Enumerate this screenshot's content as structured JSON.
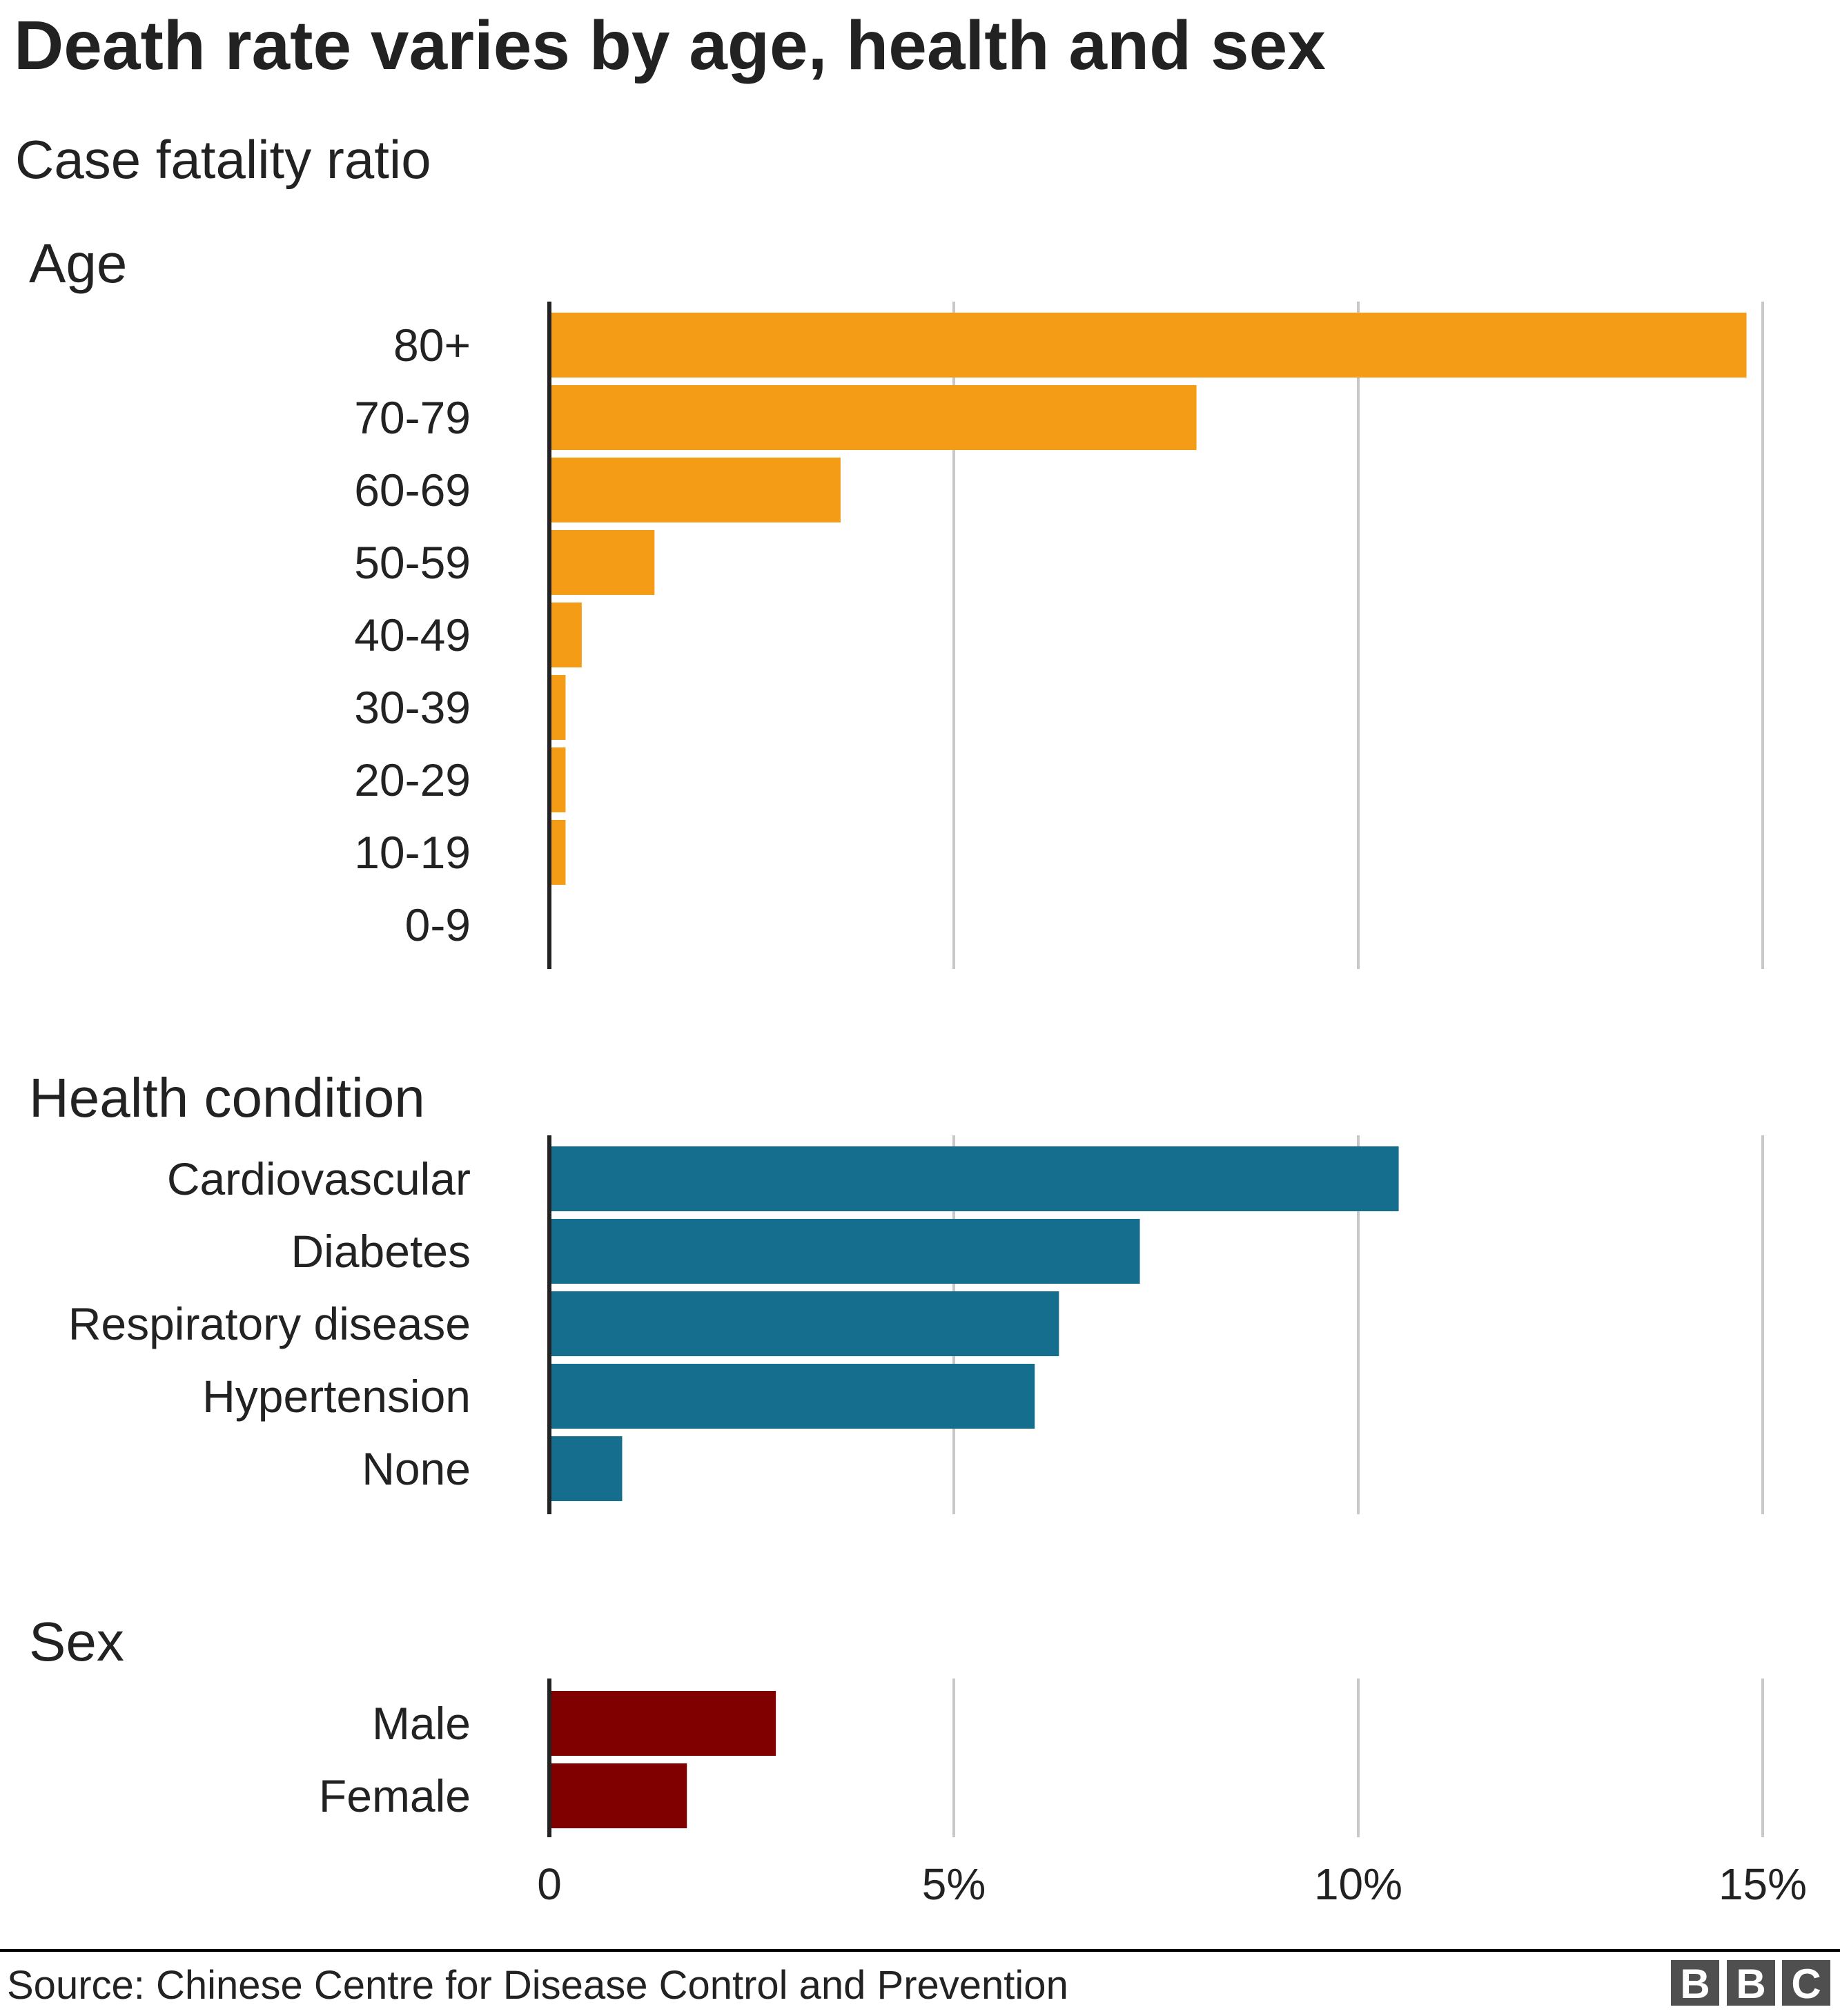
{
  "chart_data": [
    {
      "type": "bar",
      "orientation": "horizontal",
      "title": "Death rate varies by age, health and sex",
      "subtitle": "Case fatality ratio",
      "group": "Age",
      "categories": [
        "80+",
        "70-79",
        "60-69",
        "50-59",
        "40-49",
        "30-39",
        "20-29",
        "10-19",
        "0-9"
      ],
      "values": [
        14.8,
        8.0,
        3.6,
        1.3,
        0.4,
        0.2,
        0.2,
        0.2,
        0
      ],
      "color": "#f59c17",
      "xlim": [
        0,
        15
      ],
      "grid": true
    },
    {
      "type": "bar",
      "orientation": "horizontal",
      "group": "Health condition",
      "categories": [
        "Cardiovascular",
        "Diabetes",
        "Respiratory disease",
        "Hypertension",
        "None"
      ],
      "values": [
        10.5,
        7.3,
        6.3,
        6.0,
        0.9
      ],
      "color": "#166e8f",
      "xlim": [
        0,
        15
      ],
      "grid": true
    },
    {
      "type": "bar",
      "orientation": "horizontal",
      "group": "Sex",
      "categories": [
        "Male",
        "Female"
      ],
      "values": [
        2.8,
        1.7
      ],
      "color": "#800000",
      "xlim": [
        0,
        15
      ],
      "grid": true,
      "xticks": [
        "0",
        "5%",
        "10%",
        "15%"
      ],
      "xtick_values": [
        0,
        5,
        10,
        15
      ]
    }
  ],
  "header": {
    "title": "Death rate varies by age, health and sex",
    "subtitle": "Case fatality ratio"
  },
  "footer": {
    "source": "Source: Chinese Centre for Disease Control and Prevention",
    "logo": "BBC"
  }
}
